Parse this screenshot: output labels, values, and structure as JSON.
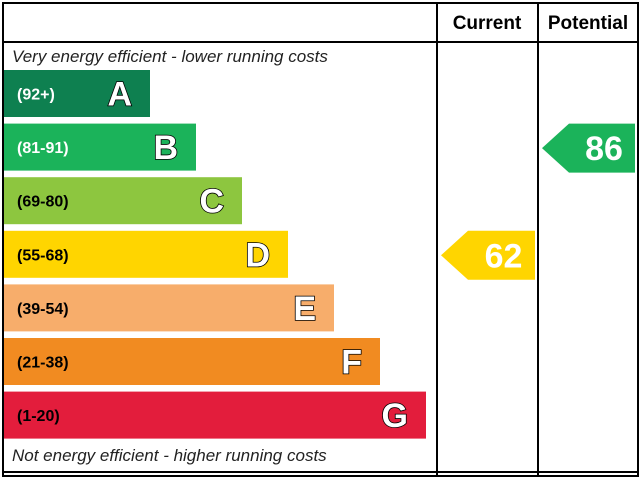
{
  "header": {
    "current_label": "Current",
    "potential_label": "Potential"
  },
  "notes": {
    "top": "Very energy efficient - lower running costs",
    "bottom": "Not energy efficient - higher running costs"
  },
  "chart_data": {
    "type": "bar",
    "categories": [
      "A",
      "B",
      "C",
      "D",
      "E",
      "F",
      "G"
    ],
    "bands": [
      {
        "letter": "A",
        "range": "(92+)",
        "color": "#0e8050",
        "range_color": "#ffffff"
      },
      {
        "letter": "B",
        "range": "(81-91)",
        "color": "#1bb35a",
        "range_color": "#ffffff"
      },
      {
        "letter": "C",
        "range": "(69-80)",
        "color": "#8dc63f",
        "range_color": "#000000"
      },
      {
        "letter": "D",
        "range": "(55-68)",
        "color": "#ffd500",
        "range_color": "#000000"
      },
      {
        "letter": "E",
        "range": "(39-54)",
        "color": "#f7ad6b",
        "range_color": "#000000"
      },
      {
        "letter": "F",
        "range": "(21-38)",
        "color": "#f18b21",
        "range_color": "#000000"
      },
      {
        "letter": "G",
        "range": "(1-20)",
        "color": "#e31d3c",
        "range_color": "#000000"
      }
    ],
    "current": {
      "value": 62,
      "band": "D",
      "color": "#ffd500"
    },
    "potential": {
      "value": 86,
      "band": "B",
      "color": "#1bb35a"
    }
  }
}
